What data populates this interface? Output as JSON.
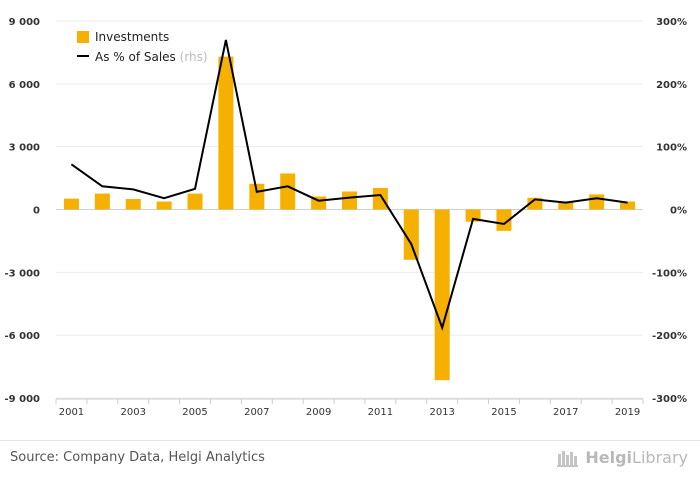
{
  "chart_data": {
    "type": "bar",
    "categories": [
      "2001",
      "2002",
      "2003",
      "2004",
      "2005",
      "2006",
      "2007",
      "2008",
      "2009",
      "2010",
      "2011",
      "2012",
      "2013",
      "2014",
      "2015",
      "2016",
      "2017",
      "2018",
      "2019"
    ],
    "x_tick_labels": [
      "2001",
      "2003",
      "2005",
      "2007",
      "2009",
      "2011",
      "2013",
      "2015",
      "2017",
      "2019"
    ],
    "series": [
      {
        "name": "Investments",
        "type": "bar",
        "axis": "left",
        "color": "#f5b000",
        "values": [
          520,
          760,
          500,
          380,
          760,
          7300,
          1230,
          1720,
          620,
          860,
          1030,
          -2400,
          -8150,
          -580,
          -1020,
          560,
          390,
          720,
          380
        ]
      },
      {
        "name": "As % of Sales",
        "name_note": "(rhs)",
        "type": "line",
        "axis": "right",
        "color": "#000000",
        "values": [
          72,
          37,
          32,
          18,
          33,
          270,
          28,
          37,
          14,
          19,
          23,
          -55,
          -188,
          -15,
          -23,
          16,
          11,
          18,
          11
        ]
      }
    ],
    "y_left": {
      "min": -9000,
      "max": 9000,
      "ticks": [
        9000,
        6000,
        3000,
        0,
        -3000,
        -6000,
        -9000
      ],
      "tick_labels": [
        "9 000",
        "6 000",
        "3 000",
        "0",
        "-3 000",
        "-6 000",
        "-9 000"
      ]
    },
    "y_right": {
      "min": -300,
      "max": 300,
      "ticks": [
        300,
        200,
        100,
        0,
        -100,
        -200,
        -300
      ],
      "tick_labels": [
        "300%",
        "200%",
        "100%",
        "0%",
        "-100%",
        "-200%",
        "-300%"
      ]
    },
    "grid": "horizontal",
    "legend_position": "top-left",
    "xlabel": "",
    "ylabel": ""
  },
  "footer": {
    "source": "Source: Company Data, Helgi Analytics",
    "brand_part1": "Helgi",
    "brand_part2": "Library",
    "brand_icon": "library-books-icon"
  }
}
